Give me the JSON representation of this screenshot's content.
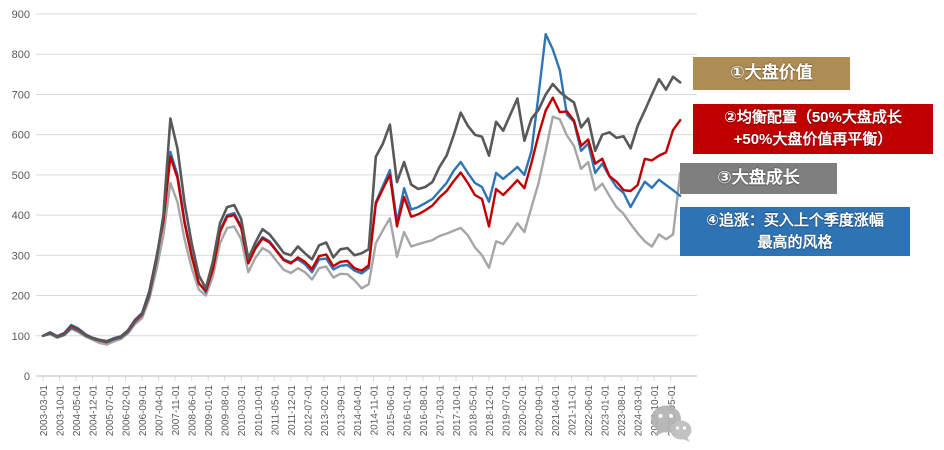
{
  "chart_data": {
    "type": "line",
    "title": "",
    "grid": "horizontal",
    "grid_color": "#D9D9D9",
    "axis_color": "#BFBFBF",
    "axis_label_color": "#595959",
    "legend_position": "right-callout-boxes",
    "y_axis": {
      "min": 0,
      "max": 900,
      "step": 100,
      "tick_labels": [
        "0",
        "100",
        "200",
        "300",
        "400",
        "500",
        "600",
        "700",
        "800",
        "900"
      ]
    },
    "x_axis": {
      "category_frequency": "monthly",
      "label_every_n_months": 7,
      "first_point": "2003-03",
      "last_point": "2025-09",
      "tick_labels": [
        "2003-03-01",
        "2003-10-01",
        "2004-05-01",
        "2004-12-01",
        "2005-07-01",
        "2006-02-01",
        "2006-09-01",
        "2007-04-01",
        "2007-11-01",
        "2008-06-01",
        "2009-01-01",
        "2009-08-01",
        "2010-03-01",
        "2010-10-01",
        "2011-05-01",
        "2011-12-01",
        "2012-07-01",
        "2013-02-01",
        "2013-09-01",
        "2014-04-01",
        "2014-11-01",
        "2015-06-01",
        "2016-01-01",
        "2016-08-01",
        "2017-03-01",
        "2017-10-01",
        "2018-05-01",
        "2018-12-01",
        "2019-07-01",
        "2020-02-01",
        "2020-09-01",
        "2021-04-01",
        "2021-11-01",
        "2022-06-01",
        "2023-01-01",
        "2023-08-01",
        "2024-03-01",
        "2024-10-01",
        "2025-05-01"
      ]
    },
    "plotted_resolution": "quarterly estimates, index base 100 at 2003-03",
    "series": [
      {
        "name": "①大盘价值",
        "color": "#595959",
        "width": 2.6,
        "values": [
          100,
          106,
          97,
          103,
          120,
          113,
          101,
          93,
          88,
          84,
          91,
          96,
          110,
          135,
          152,
          200,
          285,
          400,
          640,
          565,
          430,
          330,
          250,
          218,
          285,
          380,
          420,
          425,
          390,
          292,
          332,
          365,
          352,
          330,
          306,
          300,
          322,
          305,
          290,
          325,
          332,
          295,
          315,
          318,
          300,
          305,
          315,
          545,
          577,
          625,
          482,
          532,
          476,
          465,
          470,
          482,
          520,
          548,
          598,
          655,
          622,
          600,
          595,
          548,
          632,
          610,
          650,
          690,
          585,
          640,
          662,
          700,
          726,
          706,
          692,
          680,
          618,
          640,
          560,
          600,
          606,
          592,
          596,
          566,
          622,
          660,
          700,
          738,
          712,
          744,
          730
        ]
      },
      {
        "name": "②均衡配置（50%大盘成长+50%大盘价值再平衡）",
        "color": "#C00000",
        "width": 2.4,
        "values": [
          100,
          107,
          98,
          105,
          123,
          115,
          102,
          94,
          89,
          85,
          92,
          97,
          112,
          137,
          154,
          205,
          290,
          385,
          545,
          492,
          380,
          297,
          230,
          212,
          265,
          358,
          396,
          400,
          368,
          280,
          317,
          342,
          332,
          310,
          288,
          280,
          295,
          284,
          266,
          298,
          302,
          273,
          284,
          286,
          268,
          262,
          275,
          428,
          465,
          500,
          372,
          445,
          396,
          402,
          412,
          424,
          444,
          460,
          484,
          506,
          480,
          450,
          440,
          372,
          465,
          450,
          468,
          487,
          467,
          530,
          600,
          660,
          692,
          656,
          658,
          635,
          572,
          588,
          528,
          540,
          497,
          483,
          462,
          460,
          475,
          540,
          536,
          548,
          556,
          612,
          636
        ]
      },
      {
        "name": "③大盘成长",
        "color": "#A6A6A6",
        "width": 2.4,
        "values": [
          100,
          104,
          95,
          101,
          117,
          109,
          98,
          90,
          82,
          78,
          86,
          92,
          106,
          129,
          144,
          190,
          262,
          350,
          480,
          432,
          340,
          268,
          215,
          200,
          248,
          330,
          368,
          372,
          340,
          258,
          294,
          318,
          308,
          286,
          264,
          256,
          268,
          258,
          240,
          268,
          272,
          245,
          254,
          253,
          238,
          218,
          228,
          330,
          362,
          392,
          296,
          358,
          322,
          328,
          333,
          338,
          348,
          354,
          361,
          368,
          350,
          320,
          300,
          269,
          335,
          328,
          352,
          380,
          358,
          420,
          480,
          560,
          645,
          638,
          598,
          572,
          515,
          532,
          462,
          478,
          448,
          420,
          403,
          378,
          355,
          335,
          322,
          352,
          340,
          352,
          505
        ]
      },
      {
        "name": "④追涨：买入上个季度涨幅最高的风格",
        "color": "#2E75B6",
        "width": 2.4,
        "values": [
          100,
          109,
          99,
          107,
          127,
          118,
          104,
          95,
          90,
          87,
          94,
          99,
          114,
          140,
          157,
          210,
          295,
          390,
          557,
          500,
          385,
          300,
          232,
          208,
          268,
          362,
          400,
          405,
          372,
          282,
          320,
          345,
          335,
          312,
          290,
          283,
          290,
          278,
          258,
          290,
          292,
          265,
          274,
          276,
          262,
          255,
          268,
          432,
          472,
          512,
          382,
          467,
          414,
          420,
          430,
          440,
          460,
          480,
          510,
          532,
          505,
          480,
          470,
          433,
          505,
          490,
          505,
          520,
          500,
          560,
          700,
          850,
          812,
          760,
          650,
          632,
          560,
          578,
          505,
          528,
          497,
          470,
          455,
          420,
          452,
          483,
          468,
          488,
          475,
          462,
          448
        ]
      }
    ]
  },
  "legend": [
    {
      "bg": "#AE8C55",
      "lines": [
        "①大盘价值"
      ]
    },
    {
      "bg": "#C00000",
      "lines": [
        "②均衡配置（50%大盘成长",
        "+50%大盘价值再平衡）"
      ]
    },
    {
      "bg": "#7F7F7F",
      "lines": [
        "③大盘成长"
      ]
    },
    {
      "bg": "#2E74B5",
      "lines": [
        "④追涨：买入上个季度涨幅",
        "最高的风格"
      ]
    }
  ],
  "watermark": {
    "icon": "wechat-logo",
    "color": "#B3B3B3"
  }
}
